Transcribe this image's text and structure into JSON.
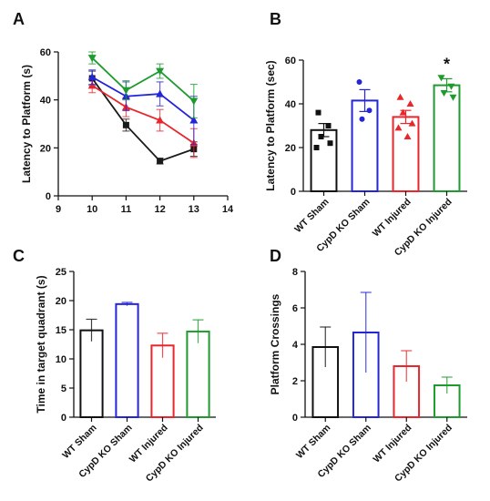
{
  "chart_data": [
    {
      "panel": "A",
      "type": "line",
      "title": "",
      "ylabel": "Latency to Platform (s)",
      "xlabel": "",
      "xlim": [
        9,
        14
      ],
      "ylim": [
        0,
        60
      ],
      "x_ticks": [
        "9",
        "10",
        "11",
        "12",
        "13",
        "14"
      ],
      "y_ticks": [
        "0",
        "20",
        "40",
        "60"
      ],
      "grid": false,
      "legend": "none",
      "series": [
        {
          "color": "#1a1a1a",
          "marker": "square",
          "x": [
            10,
            11,
            12,
            13
          ],
          "y": [
            49,
            29.5,
            14.5,
            19.5
          ],
          "err": [
            3,
            2.5,
            1.2,
            3
          ]
        },
        {
          "color": "#e8262b",
          "marker": "triangle-up",
          "x": [
            10,
            11,
            12,
            13
          ],
          "y": [
            46,
            37,
            31.5,
            22
          ],
          "err": [
            3,
            4,
            4.5,
            6
          ]
        },
        {
          "color": "#2424d8",
          "marker": "triangle-up",
          "x": [
            10,
            11,
            12,
            13
          ],
          "y": [
            49.5,
            41.5,
            42.5,
            31.5
          ],
          "err": [
            3,
            6,
            5,
            10
          ]
        },
        {
          "color": "#1e9a2e",
          "marker": "triangle-down",
          "x": [
            10,
            11,
            12,
            13
          ],
          "y": [
            57.5,
            44,
            52,
            39.5
          ],
          "err": [
            2.5,
            4,
            3,
            7
          ]
        }
      ]
    },
    {
      "panel": "B",
      "type": "bar",
      "title": "",
      "ylabel": "Latency to  Platform (sec)",
      "xlabel": "",
      "ylim": [
        0,
        60
      ],
      "y_ticks": [
        "0",
        "20",
        "40",
        "60"
      ],
      "categories": [
        "WT Sham",
        "CypD KO Sham",
        "WT Injured",
        "CypD KO Injured"
      ],
      "colors": [
        "#111111",
        "#2424d8",
        "#e8262b",
        "#1e9a2e"
      ],
      "values": [
        28,
        41.5,
        34,
        48.5
      ],
      "err": [
        3,
        5,
        3,
        3
      ],
      "points": [
        [
          36,
          30,
          25,
          22,
          20
        ],
        [
          50,
          37,
          33
        ],
        [
          43,
          40,
          36,
          31,
          29,
          25
        ],
        [
          52,
          48,
          45,
          43
        ]
      ],
      "annotation": "*"
    },
    {
      "panel": "C",
      "type": "bar",
      "title": "",
      "ylabel": "Time in target quadrant (s)",
      "xlabel": "",
      "ylim": [
        0,
        25
      ],
      "y_ticks": [
        "0",
        "5",
        "10",
        "15",
        "20",
        "25"
      ],
      "categories": [
        "WT Sham",
        "CypD KO Sham",
        "WT Injured",
        "CypD KO Injured"
      ],
      "colors": [
        "#111111",
        "#2424d8",
        "#e8262b",
        "#1e9a2e"
      ],
      "values": [
        14.9,
        19.4,
        12.3,
        14.7
      ],
      "err": [
        1.9,
        0.3,
        2.1,
        2
      ]
    },
    {
      "panel": "D",
      "type": "bar",
      "title": "",
      "ylabel": "Platform Crossings",
      "xlabel": "",
      "ylim": [
        0,
        8
      ],
      "y_ticks": [
        "0",
        "2",
        "4",
        "6",
        "8"
      ],
      "categories": [
        "WT Sham",
        "CypD KO Sham",
        "WT Injured",
        "CypD KO Injured"
      ],
      "colors": [
        "#111111",
        "#2424d8",
        "#e8262b",
        "#1e9a2e"
      ],
      "values": [
        3.85,
        4.65,
        2.8,
        1.75
      ],
      "err": [
        1.1,
        2.2,
        0.85,
        0.45
      ]
    }
  ]
}
